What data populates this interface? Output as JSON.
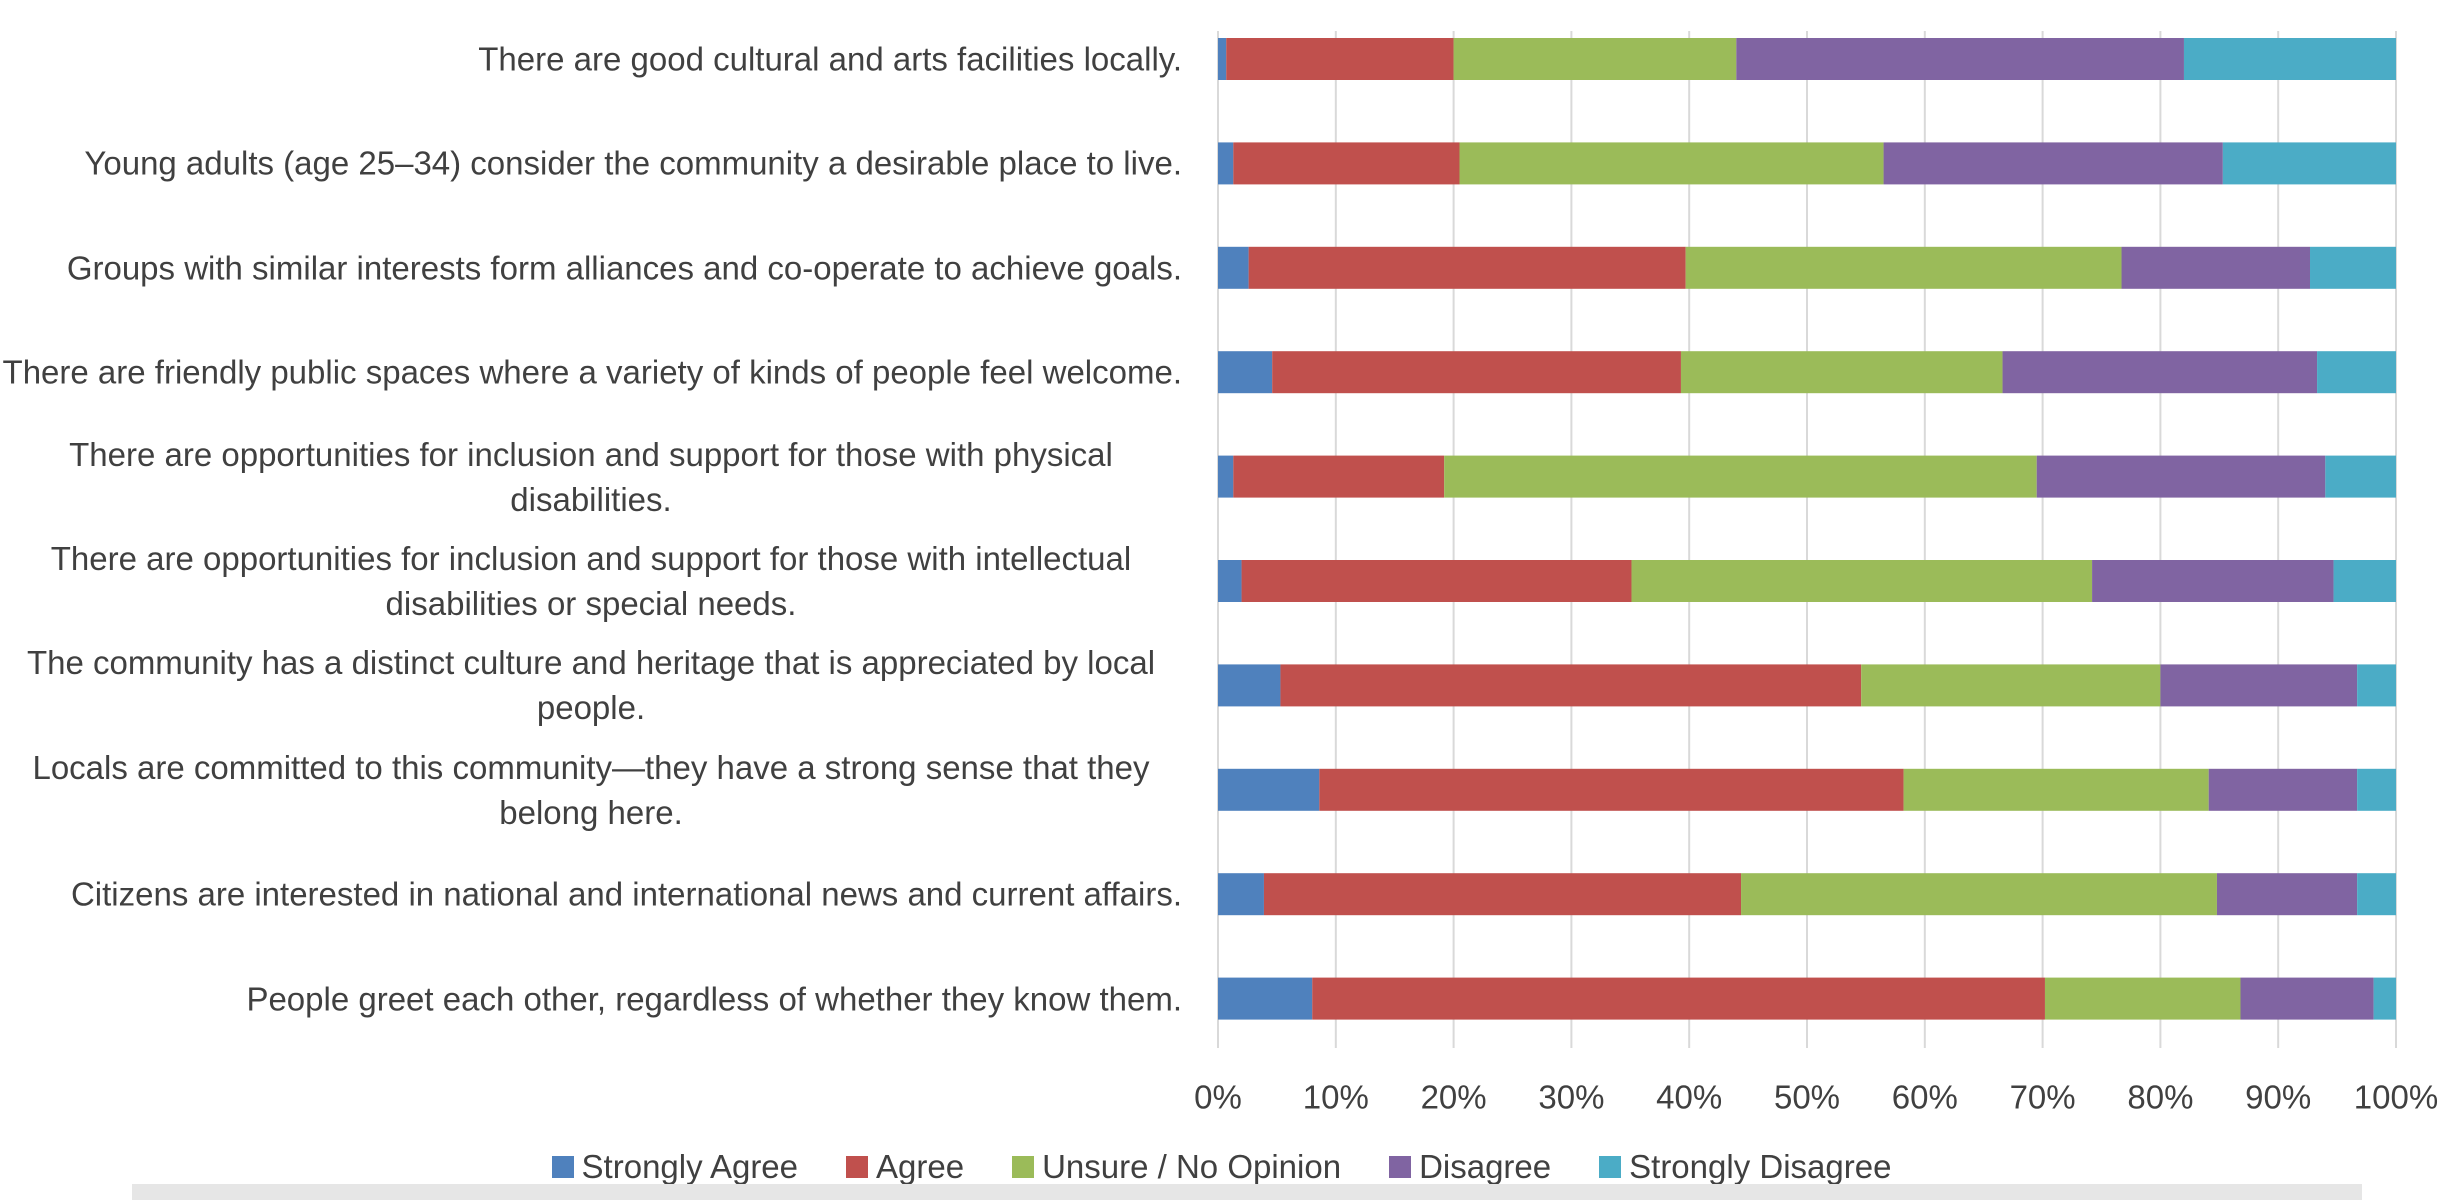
{
  "chart_data": {
    "type": "stacked_barh",
    "categories": [
      "There are good cultural and arts facilities locally.",
      "Young adults (age 25–34) consider the community a desirable place to live.",
      "Groups with similar interests form alliances and co-operate to achieve goals.",
      "There are friendly public spaces where a variety of kinds of people feel welcome.",
      "There are opportunities for inclusion and support for those with physical disabilities.",
      "There are opportunities for inclusion and support for those with intellectual disabilities or special needs.",
      "The community has a distinct culture and heritage that is appreciated by local people.",
      "Locals are committed to this community—they have a strong sense that they belong here.",
      "Citizens are interested in national and international news and current affairs.",
      "People greet each other, regardless of whether they know them."
    ],
    "series": [
      {
        "name": "Strongly Agree",
        "color": "#4f81bd",
        "values": [
          0.7,
          1.3,
          2.6,
          4.6,
          1.3,
          2.0,
          5.3,
          8.6,
          3.9,
          8.0
        ]
      },
      {
        "name": "Agree",
        "color": "#c0504d",
        "values": [
          19.3,
          19.2,
          37.1,
          34.7,
          17.9,
          33.1,
          49.3,
          49.6,
          40.5,
          62.2
        ]
      },
      {
        "name": "Unsure / No Opinion",
        "color": "#9bbb59",
        "values": [
          24.0,
          36.0,
          37.0,
          27.3,
          50.3,
          39.1,
          25.4,
          25.9,
          40.4,
          16.6
        ]
      },
      {
        "name": "Disagree",
        "color": "#8064a2",
        "values": [
          38.0,
          28.8,
          16.0,
          26.7,
          24.5,
          20.5,
          16.7,
          12.6,
          11.9,
          11.3
        ]
      },
      {
        "name": "Strongly Disagree",
        "color": "#4bacc6",
        "values": [
          18.0,
          14.7,
          7.3,
          6.7,
          6.0,
          5.3,
          3.3,
          3.3,
          3.3,
          1.9
        ]
      }
    ],
    "xlim": [
      0,
      100
    ],
    "xticks": [
      {
        "value": 0,
        "label": "0%"
      },
      {
        "value": 10,
        "label": "10%"
      },
      {
        "value": 20,
        "label": "20%"
      },
      {
        "value": 30,
        "label": "30%"
      },
      {
        "value": 40,
        "label": "40%"
      },
      {
        "value": 50,
        "label": "50%"
      },
      {
        "value": 60,
        "label": "60%"
      },
      {
        "value": 70,
        "label": "70%"
      },
      {
        "value": 80,
        "label": "80%"
      },
      {
        "value": 90,
        "label": "90%"
      },
      {
        "value": 100,
        "label": "100%"
      }
    ],
    "grid": true,
    "legend": "bottom"
  }
}
